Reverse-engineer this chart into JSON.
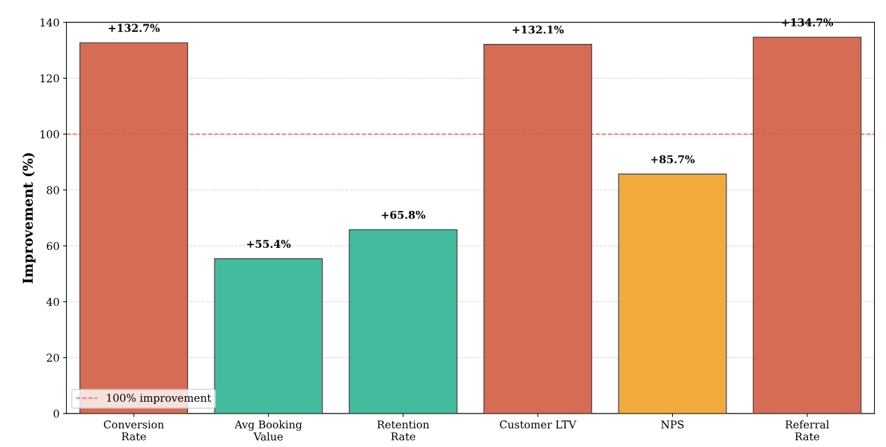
{
  "chart_data": {
    "type": "bar",
    "ylabel": "Improvement (%)",
    "categories": [
      "Conversion\nRate",
      "Avg Booking\nValue",
      "Retention\nRate",
      "Customer LTV",
      "NPS",
      "Referral\nRate"
    ],
    "values": [
      132.7,
      55.4,
      65.8,
      132.1,
      85.7,
      134.7
    ],
    "colors": [
      "#d4654a",
      "#38b899",
      "#38b899",
      "#d4654a",
      "#f0a732",
      "#d4654a"
    ],
    "value_labels": [
      "+132.7%",
      "+55.4%",
      "+65.8%",
      "+132.1%",
      "+85.7%",
      "+134.7%"
    ],
    "ylim": [
      0,
      140
    ],
    "yticks": [
      0,
      20,
      40,
      60,
      80,
      100,
      120,
      140
    ],
    "grid": "y",
    "ref_lines": [
      {
        "axis": "y",
        "value": 100,
        "label": "100% improvement",
        "color": "#f07070",
        "line_style": "dashed"
      }
    ],
    "legend": "bottom left"
  }
}
